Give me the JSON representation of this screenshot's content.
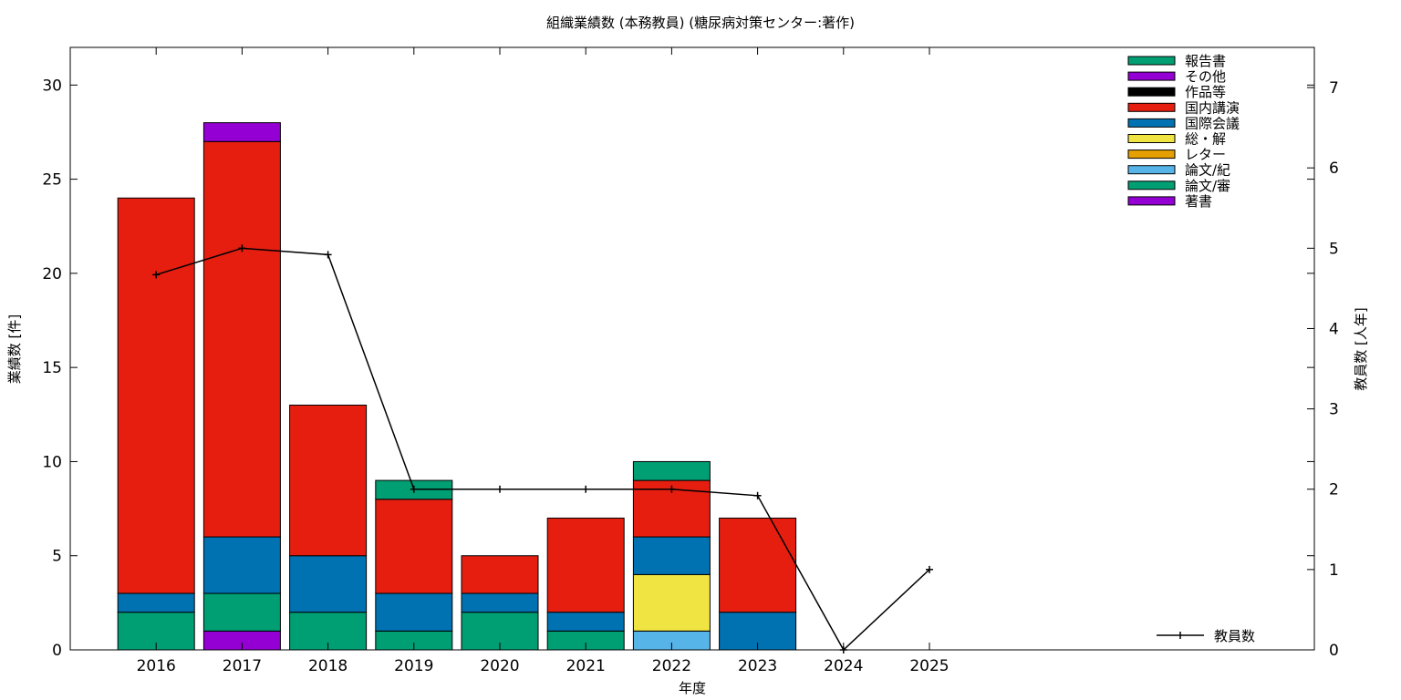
{
  "chart_data": {
    "type": "bar",
    "stacked": true,
    "title": "組織業績数 (本務教員) (糖尿病対策センター:著作)",
    "xlabel": "年度",
    "ylabel": "業績数 [件]",
    "y2label": "教員数 [人年]",
    "ylim": [
      0,
      32
    ],
    "y2lim": [
      0,
      7.5
    ],
    "yticks": [
      "0",
      "5",
      "10",
      "15",
      "20",
      "25",
      "30"
    ],
    "y2ticks": [
      "0",
      "1",
      "2",
      "3",
      "4",
      "5",
      "6",
      "7"
    ],
    "categories": [
      "2016",
      "2017",
      "2018",
      "2019",
      "2020",
      "2021",
      "2022",
      "2023",
      "2024",
      "2025"
    ],
    "legend_position": "top-right",
    "legend_order": [
      "報告書",
      "その他",
      "作品等",
      "国内講演",
      "国際会議",
      "総・解",
      "レター",
      "論文/紀",
      "論文/審",
      "著書"
    ],
    "series": [
      {
        "name": "著書",
        "color": "#9400d3",
        "values": [
          0,
          1,
          0,
          0,
          0,
          0,
          0,
          0,
          0,
          0
        ]
      },
      {
        "name": "論文/審",
        "color": "#009e73",
        "values": [
          2,
          2,
          2,
          1,
          2,
          1,
          0,
          0,
          0,
          0
        ]
      },
      {
        "name": "論文/紀",
        "color": "#56b4e9",
        "values": [
          0,
          0,
          0,
          0,
          0,
          0,
          1,
          0,
          0,
          0
        ]
      },
      {
        "name": "レター",
        "color": "#e69f00",
        "values": [
          0,
          0,
          0,
          0,
          0,
          0,
          0,
          0,
          0,
          0
        ]
      },
      {
        "name": "総・解",
        "color": "#f0e442",
        "values": [
          0,
          0,
          0,
          0,
          0,
          0,
          3,
          0,
          0,
          0
        ]
      },
      {
        "name": "国際会議",
        "color": "#0072b2",
        "values": [
          1,
          3,
          3,
          2,
          1,
          1,
          2,
          2,
          0,
          0
        ]
      },
      {
        "name": "国内講演",
        "color": "#e51e10",
        "values": [
          21,
          21,
          8,
          5,
          2,
          5,
          3,
          5,
          0,
          0
        ]
      },
      {
        "name": "作品等",
        "color": "#000000",
        "values": [
          0,
          0,
          0,
          0,
          0,
          0,
          0,
          0,
          0,
          0
        ]
      },
      {
        "name": "その他",
        "color": "#9400d3",
        "values": [
          0,
          1,
          0,
          0,
          0,
          0,
          0,
          0,
          0,
          0
        ]
      },
      {
        "name": "報告書",
        "color": "#009e73",
        "values": [
          0,
          0,
          0,
          1,
          0,
          0,
          1,
          0,
          0,
          0
        ]
      }
    ],
    "line_series": {
      "name": "教員数",
      "axis": "y2",
      "color": "#000000",
      "values": [
        4.67,
        5.0,
        4.92,
        2.0,
        2.0,
        2.0,
        2.0,
        1.92,
        0,
        1.0
      ]
    }
  }
}
